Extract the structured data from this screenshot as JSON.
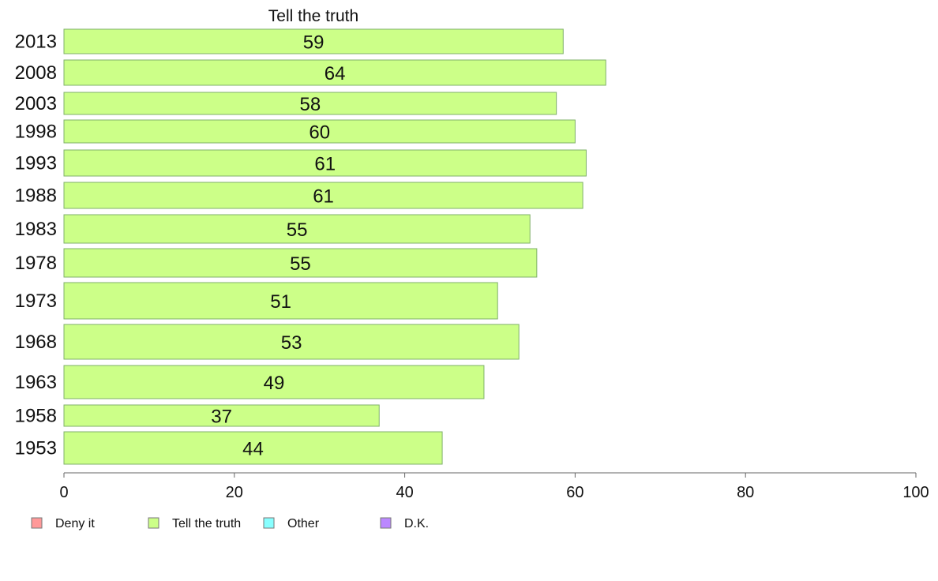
{
  "chart_data": {
    "type": "bar",
    "orientation": "horizontal",
    "title": "Tell the truth",
    "categories": [
      "2013",
      "2008",
      "2003",
      "1998",
      "1993",
      "1988",
      "1983",
      "1978",
      "1973",
      "1968",
      "1963",
      "1958",
      "1953"
    ],
    "series": [
      {
        "name": "Tell the truth",
        "color": "#ccff88",
        "values": [
          58.6,
          63.6,
          57.8,
          60.0,
          61.3,
          60.9,
          54.7,
          55.5,
          50.9,
          53.4,
          49.3,
          37.0,
          44.4
        ],
        "labels": [
          "59",
          "64",
          "58",
          "60",
          "61",
          "61",
          "55",
          "55",
          "51",
          "53",
          "49",
          "37",
          "44"
        ]
      }
    ],
    "xlim": [
      0,
      100
    ],
    "x_ticks": [
      0,
      20,
      40,
      60,
      80,
      100
    ],
    "x_tick_labels": [
      "0",
      "20",
      "40",
      "60",
      "80",
      "100"
    ],
    "grid": false,
    "legend": {
      "position": "bottom-left",
      "entries": [
        {
          "label": "Deny it",
          "color": "#ff9999"
        },
        {
          "label": "Tell the truth",
          "color": "#ccff88"
        },
        {
          "label": "Other",
          "color": "#88ffff"
        },
        {
          "label": "D.K.",
          "color": "#bb88ff"
        }
      ]
    }
  }
}
